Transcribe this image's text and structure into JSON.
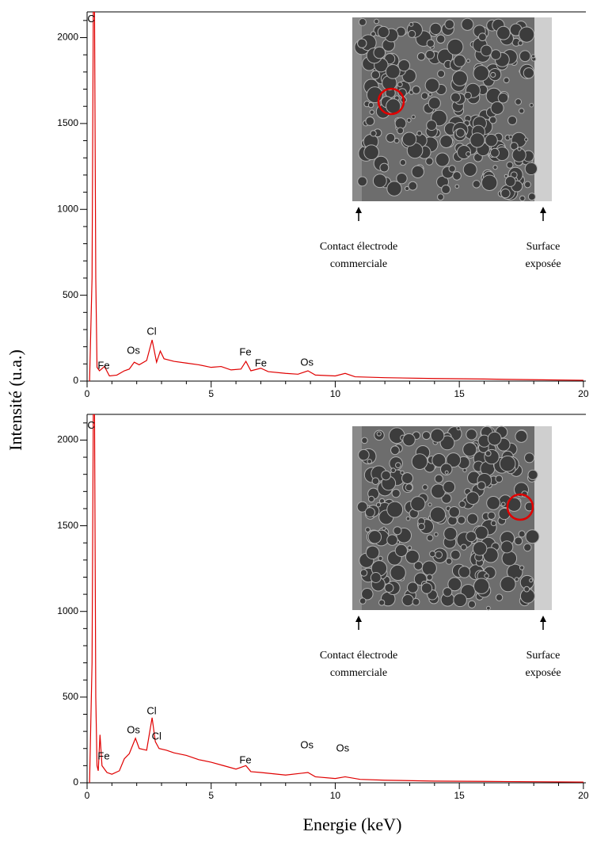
{
  "figure": {
    "ylabel": "Intensité (u.a.)",
    "xlabel": "Energie (keV)"
  },
  "chart_data": [
    {
      "type": "line",
      "color": "#e00000",
      "xlim": [
        0,
        20.1
      ],
      "ylim": [
        0,
        2150
      ],
      "xticks": [
        0,
        5,
        10,
        15,
        20
      ],
      "yticks": [
        0,
        500,
        1000,
        1500,
        2000
      ],
      "xminorticks": [
        1,
        2,
        3,
        4,
        6,
        7,
        8,
        9,
        11,
        12,
        13,
        14,
        16,
        17,
        18,
        19
      ],
      "yminorticks": [
        100,
        200,
        300,
        400,
        600,
        700,
        800,
        900,
        1100,
        1200,
        1300,
        1400,
        1600,
        1700,
        1800,
        1900,
        2100
      ],
      "x": [
        0.1,
        0.2,
        0.25,
        0.3,
        0.35,
        0.4,
        0.5,
        0.7,
        0.9,
        1.2,
        1.5,
        1.7,
        1.9,
        2.1,
        2.4,
        2.62,
        2.8,
        2.95,
        3.1,
        3.5,
        4,
        4.5,
        5,
        5.4,
        5.8,
        6.2,
        6.4,
        6.6,
        7.0,
        7.3,
        8,
        8.5,
        8.9,
        9.2,
        10,
        10.4,
        10.8,
        12,
        14,
        16,
        18,
        20
      ],
      "values": [
        0,
        600,
        2150,
        2150,
        600,
        80,
        60,
        85,
        30,
        35,
        60,
        70,
        110,
        95,
        120,
        240,
        110,
        175,
        130,
        115,
        105,
        95,
        80,
        85,
        65,
        70,
        115,
        60,
        75,
        55,
        45,
        40,
        60,
        35,
        30,
        45,
        25,
        20,
        15,
        12,
        8,
        5
      ],
      "annotations": [
        {
          "text": "C",
          "x": 0.16,
          "y": 2106
        },
        {
          "text": "Fe",
          "x": 0.67,
          "y": 88
        },
        {
          "text": "Os",
          "x": 1.87,
          "y": 175
        },
        {
          "text": "Cl",
          "x": 2.6,
          "y": 286
        },
        {
          "text": "Fe",
          "x": 6.38,
          "y": 166
        },
        {
          "text": "Fe",
          "x": 7.0,
          "y": 102
        },
        {
          "text": "Os",
          "x": 8.86,
          "y": 106
        }
      ],
      "inset": {
        "left_caption": [
          "Contact électrode",
          "commerciale"
        ],
        "right_caption": [
          "Surface",
          "exposée"
        ]
      }
    },
    {
      "type": "line",
      "color": "#e00000",
      "xlim": [
        0,
        20.1
      ],
      "ylim": [
        0,
        2150
      ],
      "xticks": [
        0,
        5,
        10,
        15,
        20
      ],
      "yticks": [
        0,
        500,
        1000,
        1500,
        2000
      ],
      "xminorticks": [
        1,
        2,
        3,
        4,
        6,
        7,
        8,
        9,
        11,
        12,
        13,
        14,
        16,
        17,
        18,
        19
      ],
      "yminorticks": [
        100,
        200,
        300,
        400,
        600,
        700,
        800,
        900,
        1100,
        1200,
        1300,
        1400,
        1600,
        1700,
        1800,
        1900,
        2100
      ],
      "x": [
        0.1,
        0.2,
        0.25,
        0.3,
        0.35,
        0.4,
        0.45,
        0.52,
        0.6,
        0.8,
        1.0,
        1.3,
        1.5,
        1.7,
        1.95,
        2.1,
        2.4,
        2.62,
        2.75,
        2.9,
        3.2,
        3.5,
        4,
        4.5,
        5,
        5.5,
        6,
        6.4,
        6.6,
        7,
        8,
        8.9,
        9.2,
        10,
        10.4,
        11,
        12,
        14,
        16,
        18,
        20
      ],
      "values": [
        0,
        700,
        2150,
        2150,
        500,
        100,
        70,
        280,
        100,
        60,
        50,
        70,
        140,
        170,
        260,
        200,
        190,
        380,
        240,
        200,
        190,
        175,
        160,
        135,
        120,
        100,
        80,
        100,
        65,
        60,
        45,
        60,
        35,
        25,
        35,
        20,
        15,
        10,
        8,
        6,
        4
      ],
      "annotations": [
        {
          "text": "C",
          "x": 0.16,
          "y": 2083
        },
        {
          "text": "Fe",
          "x": 0.67,
          "y": 152
        },
        {
          "text": "Os",
          "x": 1.87,
          "y": 305
        },
        {
          "text": "Cl",
          "x": 2.6,
          "y": 416
        },
        {
          "text": "Cl",
          "x": 2.8,
          "y": 268
        },
        {
          "text": "Fe",
          "x": 6.38,
          "y": 129
        },
        {
          "text": "Os",
          "x": 8.86,
          "y": 217
        },
        {
          "text": "Os",
          "x": 10.3,
          "y": 199
        }
      ],
      "inset": {
        "left_caption": [
          "Contact électrode",
          "commerciale"
        ],
        "right_caption": [
          "Surface",
          "exposée"
        ]
      }
    }
  ]
}
